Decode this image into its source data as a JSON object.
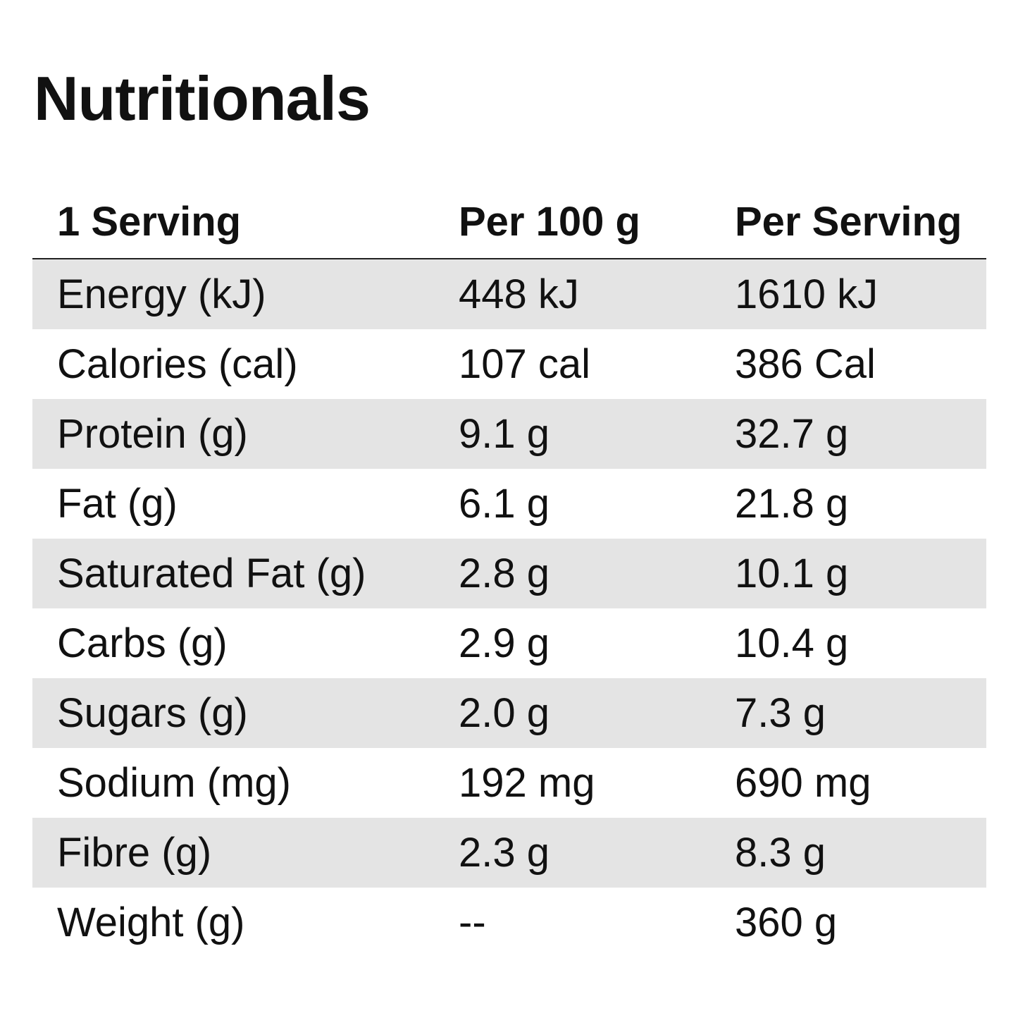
{
  "title": "Nutritionals",
  "table": {
    "headers": [
      "1 Serving",
      "Per 100 g",
      "Per Serving"
    ],
    "rows": [
      {
        "label": "Energy (kJ)",
        "per100": "448 kJ",
        "perServing": "1610 kJ"
      },
      {
        "label": "Calories (cal)",
        "per100": "107 cal",
        "perServing": "386 Cal"
      },
      {
        "label": "Protein (g)",
        "per100": "9.1 g",
        "perServing": "32.7 g"
      },
      {
        "label": "Fat (g)",
        "per100": "6.1 g",
        "perServing": "21.8 g"
      },
      {
        "label": "Saturated Fat (g)",
        "per100": "2.8 g",
        "perServing": "10.1 g"
      },
      {
        "label": "Carbs (g)",
        "per100": "2.9 g",
        "perServing": "10.4 g"
      },
      {
        "label": "Sugars (g)",
        "per100": "2.0 g",
        "perServing": "7.3 g"
      },
      {
        "label": "Sodium (mg)",
        "per100": "192 mg",
        "perServing": "690 mg"
      },
      {
        "label": "Fibre (g)",
        "per100": "2.3 g",
        "perServing": "8.3 g"
      },
      {
        "label": "Weight (g)",
        "per100": "--",
        "perServing": "360 g"
      }
    ]
  },
  "colors": {
    "shaded_row": "#e4e4e4",
    "text": "#111111",
    "header_rule": "#222222"
  }
}
